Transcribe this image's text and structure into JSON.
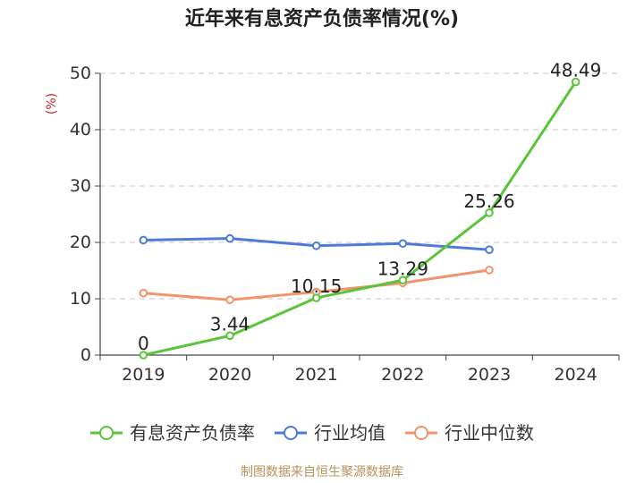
{
  "chart_data": {
    "type": "line",
    "title": "近年来有息资产负债率情况(%)",
    "unit_label": "(%)",
    "categories": [
      "2019",
      "2020",
      "2021",
      "2022",
      "2023",
      "2024"
    ],
    "ylim": [
      0,
      50
    ],
    "yticks": [
      0,
      10,
      20,
      30,
      40,
      50
    ],
    "grid": true,
    "legend_position": "bottom",
    "series": [
      {
        "name": "有息资产负债率",
        "color": "#5cc43a",
        "values": [
          0,
          3.44,
          10.15,
          13.29,
          25.26,
          48.49
        ],
        "data_labels": [
          "0",
          "3.44",
          "10.15",
          "13.29",
          "25.26",
          "48.49"
        ]
      },
      {
        "name": "行业均值",
        "color": "#4f7bd8",
        "values": [
          20.4,
          20.7,
          19.4,
          19.8,
          18.7,
          null
        ]
      },
      {
        "name": "行业中位数",
        "color": "#f2946a",
        "values": [
          11.0,
          9.8,
          11.2,
          12.8,
          15.1,
          null
        ]
      }
    ],
    "source": "制图数据来自恒生聚源数据库"
  }
}
